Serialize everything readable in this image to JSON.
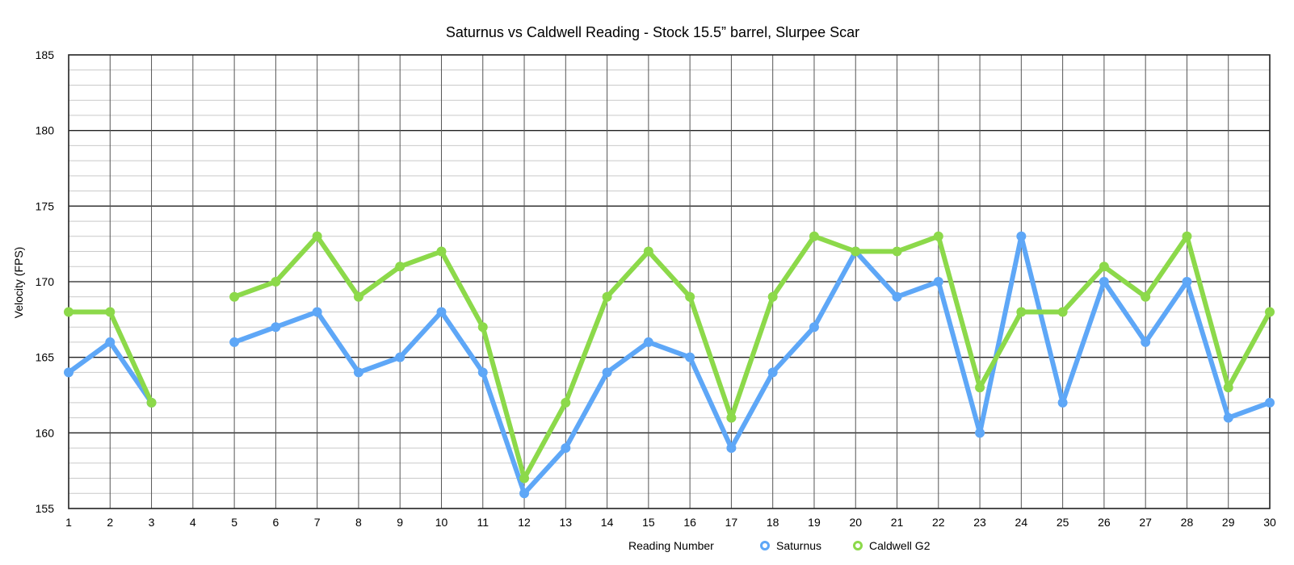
{
  "chart_data": {
    "type": "line",
    "title": "Saturnus vs Caldwell Reading - Stock 15.5” barrel, Slurpee Scar",
    "xlabel": "Reading Number",
    "ylabel": "Velocity (FPS)",
    "ylim": [
      155,
      185
    ],
    "yticks": [
      "155",
      "160",
      "165",
      "170",
      "175",
      "180",
      "185"
    ],
    "x": [
      "1",
      "2",
      "3",
      "4",
      "5",
      "6",
      "7",
      "8",
      "9",
      "10",
      "11",
      "12",
      "13",
      "14",
      "15",
      "16",
      "17",
      "18",
      "19",
      "20",
      "21",
      "22",
      "23",
      "24",
      "25",
      "26",
      "27",
      "28",
      "29",
      "30"
    ],
    "grid": true,
    "legend_position": "bottom",
    "series": [
      {
        "name": "Saturnus",
        "color": "#5ea7f7",
        "values": [
          164,
          166,
          162,
          null,
          166,
          167,
          168,
          164,
          165,
          168,
          164,
          156,
          159,
          164,
          166,
          165,
          159,
          164,
          167,
          172,
          169,
          170,
          160,
          173,
          162,
          170,
          166,
          170,
          161,
          162
        ]
      },
      {
        "name": "Caldwell G2",
        "color": "#8cd94a",
        "values": [
          168,
          168,
          162,
          null,
          169,
          170,
          173,
          169,
          171,
          172,
          167,
          157,
          162,
          169,
          172,
          169,
          161,
          169,
          173,
          172,
          172,
          173,
          163,
          168,
          168,
          171,
          169,
          173,
          163,
          168
        ]
      }
    ]
  }
}
